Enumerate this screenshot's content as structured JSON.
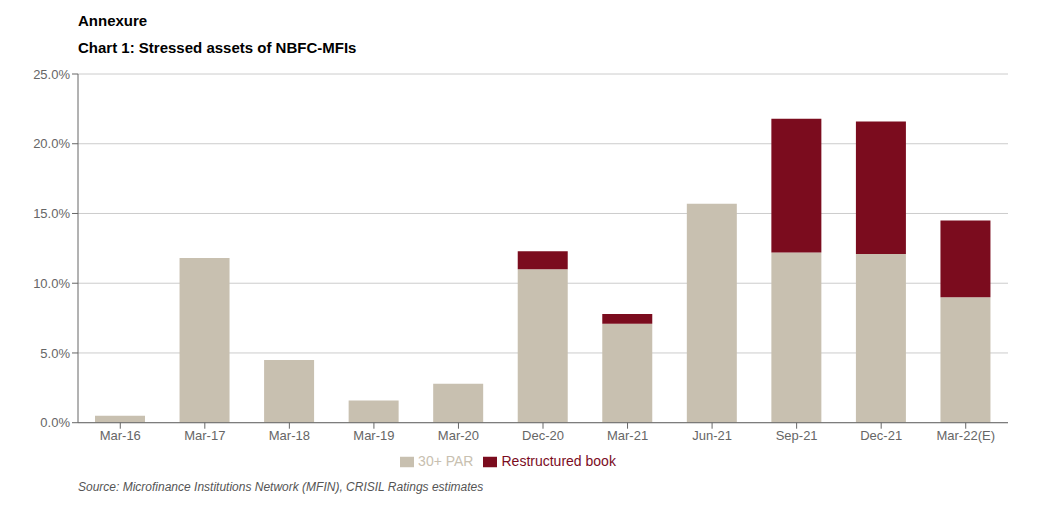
{
  "chart_data": {
    "type": "bar",
    "title": "Annexure",
    "subtitle": "Chart 1: Stressed assets of NBFC-MFIs",
    "annotations": [
      "Source: Microfinance Institutions Network (MFIN), CRISIL Ratings estimates"
    ],
    "categories": [
      "Mar-16",
      "Mar-17",
      "Mar-18",
      "Mar-19",
      "Mar-20",
      "Dec-20",
      "Mar-21",
      "Jun-21",
      "Sep-21",
      "Dec-21",
      "Mar-22(E)"
    ],
    "series": [
      {
        "name": "30+ PAR",
        "color": "#C8C0B0",
        "values": [
          0.5,
          11.8,
          4.5,
          1.6,
          2.8,
          11.0,
          7.1,
          15.7,
          12.2,
          12.1,
          9.0
        ]
      },
      {
        "name": "Restructured book",
        "color": "#7B0C1E",
        "values": [
          0.0,
          0.0,
          0.0,
          0.0,
          0.0,
          1.3,
          0.7,
          0.0,
          9.6,
          9.5,
          5.5
        ]
      }
    ],
    "stacked": true,
    "ylim": [
      0,
      25.0
    ],
    "yticks": [
      {
        "value": 0.0,
        "label": "0.0%"
      },
      {
        "value": 5.0,
        "label": "5.0%"
      },
      {
        "value": 10.0,
        "label": "10.0%"
      },
      {
        "value": 15.0,
        "label": "15.0%"
      },
      {
        "value": 20.0,
        "label": "20.0%"
      },
      {
        "value": 25.0,
        "label": "25.0%"
      }
    ],
    "grid": true,
    "legend": "bottom"
  }
}
